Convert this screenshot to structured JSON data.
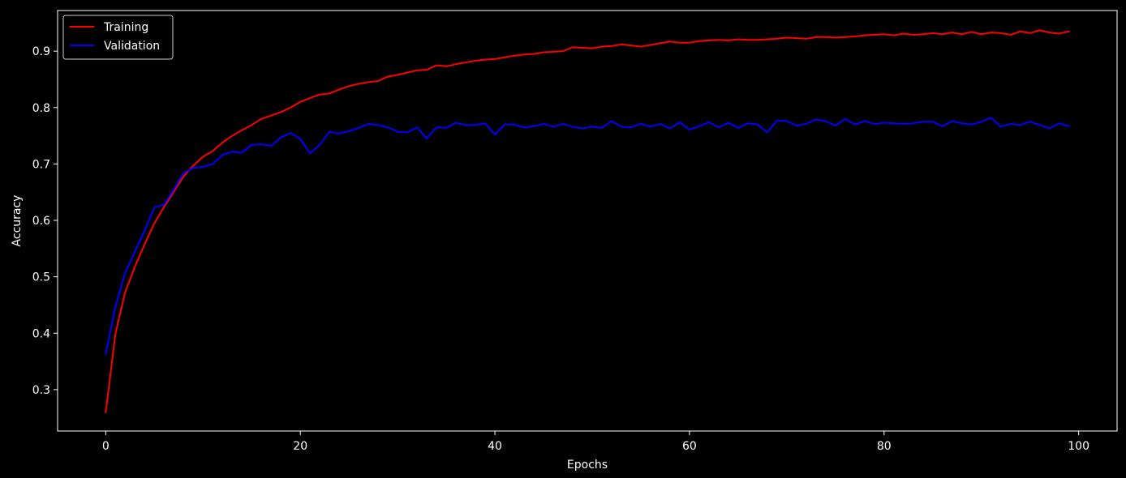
{
  "chart_data": {
    "type": "line",
    "xlabel": "Epochs",
    "ylabel": "Accuracy",
    "xlim": [
      -4.95,
      103.95
    ],
    "ylim": [
      0.2266,
      0.972
    ],
    "xticks": [
      0,
      20,
      40,
      60,
      80,
      100
    ],
    "yticks": [
      0.3,
      0.4,
      0.5,
      0.6,
      0.7,
      0.8,
      0.9
    ],
    "ytick_labels": [
      "0.3",
      "0.4",
      "0.5",
      "0.6",
      "0.7",
      "0.8",
      "0.9"
    ],
    "grid": false,
    "legend_position": "top-left",
    "background": "#000000",
    "foreground": "#ffffff",
    "x": [
      0,
      1,
      2,
      3,
      4,
      5,
      6,
      7,
      8,
      9,
      10,
      11,
      12,
      13,
      14,
      15,
      16,
      17,
      18,
      19,
      20,
      21,
      22,
      23,
      24,
      25,
      26,
      27,
      28,
      29,
      30,
      31,
      32,
      33,
      34,
      35,
      36,
      37,
      38,
      39,
      40,
      41,
      42,
      43,
      44,
      45,
      46,
      47,
      48,
      49,
      50,
      51,
      52,
      53,
      54,
      55,
      56,
      57,
      58,
      59,
      60,
      61,
      62,
      63,
      64,
      65,
      66,
      67,
      68,
      69,
      70,
      71,
      72,
      73,
      74,
      75,
      76,
      77,
      78,
      79,
      80,
      81,
      82,
      83,
      84,
      85,
      86,
      87,
      88,
      89,
      90,
      91,
      92,
      93,
      94,
      95,
      96,
      97,
      98,
      99
    ],
    "series": [
      {
        "name": "Training",
        "color": "#ff0000",
        "values": [
          0.26,
          0.4,
          0.473,
          0.518,
          0.558,
          0.595,
          0.624,
          0.651,
          0.678,
          0.697,
          0.713,
          0.723,
          0.738,
          0.75,
          0.76,
          0.769,
          0.78,
          0.786,
          0.792,
          0.8,
          0.81,
          0.817,
          0.823,
          0.825,
          0.832,
          0.838,
          0.842,
          0.845,
          0.847,
          0.855,
          0.858,
          0.862,
          0.866,
          0.867,
          0.875,
          0.873,
          0.877,
          0.88,
          0.883,
          0.885,
          0.886,
          0.889,
          0.892,
          0.894,
          0.895,
          0.898,
          0.899,
          0.9,
          0.907,
          0.906,
          0.905,
          0.908,
          0.909,
          0.912,
          0.91,
          0.908,
          0.911,
          0.914,
          0.917,
          0.915,
          0.915,
          0.918,
          0.919,
          0.92,
          0.919,
          0.921,
          0.92,
          0.92,
          0.921,
          0.922,
          0.924,
          0.923,
          0.922,
          0.925,
          0.925,
          0.924,
          0.925,
          0.926,
          0.928,
          0.929,
          0.93,
          0.928,
          0.931,
          0.929,
          0.93,
          0.932,
          0.93,
          0.933,
          0.93,
          0.934,
          0.93,
          0.933,
          0.932,
          0.929,
          0.935,
          0.932,
          0.937,
          0.933,
          0.931,
          0.935
        ]
      },
      {
        "name": "Validation",
        "color": "#0000ff",
        "values": [
          0.363,
          0.448,
          0.507,
          0.545,
          0.582,
          0.623,
          0.628,
          0.655,
          0.684,
          0.693,
          0.695,
          0.7,
          0.716,
          0.722,
          0.72,
          0.734,
          0.735,
          0.732,
          0.747,
          0.755,
          0.744,
          0.719,
          0.734,
          0.757,
          0.754,
          0.758,
          0.764,
          0.771,
          0.769,
          0.765,
          0.757,
          0.756,
          0.765,
          0.745,
          0.765,
          0.764,
          0.773,
          0.769,
          0.769,
          0.772,
          0.752,
          0.77,
          0.77,
          0.765,
          0.767,
          0.771,
          0.766,
          0.771,
          0.766,
          0.763,
          0.766,
          0.764,
          0.776,
          0.766,
          0.765,
          0.771,
          0.766,
          0.771,
          0.763,
          0.774,
          0.761,
          0.767,
          0.774,
          0.765,
          0.773,
          0.764,
          0.772,
          0.77,
          0.756,
          0.777,
          0.776,
          0.768,
          0.771,
          0.779,
          0.776,
          0.768,
          0.78,
          0.77,
          0.776,
          0.771,
          0.773,
          0.772,
          0.771,
          0.772,
          0.775,
          0.775,
          0.767,
          0.776,
          0.772,
          0.77,
          0.775,
          0.782,
          0.766,
          0.771,
          0.769,
          0.775,
          0.769,
          0.763,
          0.772,
          0.767
        ]
      }
    ]
  }
}
